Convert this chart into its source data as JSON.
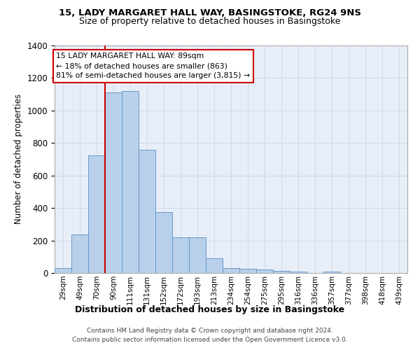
{
  "title1": "15, LADY MARGARET HALL WAY, BASINGSTOKE, RG24 9NS",
  "title2": "Size of property relative to detached houses in Basingstoke",
  "xlabel": "Distribution of detached houses by size in Basingstoke",
  "ylabel": "Number of detached properties",
  "categories": [
    "29sqm",
    "49sqm",
    "70sqm",
    "90sqm",
    "111sqm",
    "131sqm",
    "152sqm",
    "172sqm",
    "193sqm",
    "213sqm",
    "234sqm",
    "254sqm",
    "275sqm",
    "295sqm",
    "316sqm",
    "336sqm",
    "357sqm",
    "377sqm",
    "398sqm",
    "418sqm",
    "439sqm"
  ],
  "bar_heights": [
    30,
    235,
    725,
    1110,
    1120,
    760,
    375,
    220,
    220,
    90,
    30,
    25,
    20,
    15,
    10,
    0,
    10,
    0,
    0,
    0,
    0
  ],
  "bar_color": "#b8d0ea",
  "bar_edge_color": "#6699cc",
  "ylim_max": 1400,
  "yticks": [
    0,
    200,
    400,
    600,
    800,
    1000,
    1200,
    1400
  ],
  "grid_color": "#d0d8e8",
  "bg_color": "#e8eef8",
  "annotation_line1": "15 LADY MARGARET HALL WAY: 89sqm",
  "annotation_line2": "← 18% of detached houses are smaller (863)",
  "annotation_line3": "81% of semi-detached houses are larger (3,815) →",
  "red_color": "#cc0000",
  "footnote1": "Contains HM Land Registry data © Crown copyright and database right 2024.",
  "footnote2": "Contains public sector information licensed under the Open Government Licence v3.0.",
  "property_line_index": 2.5
}
